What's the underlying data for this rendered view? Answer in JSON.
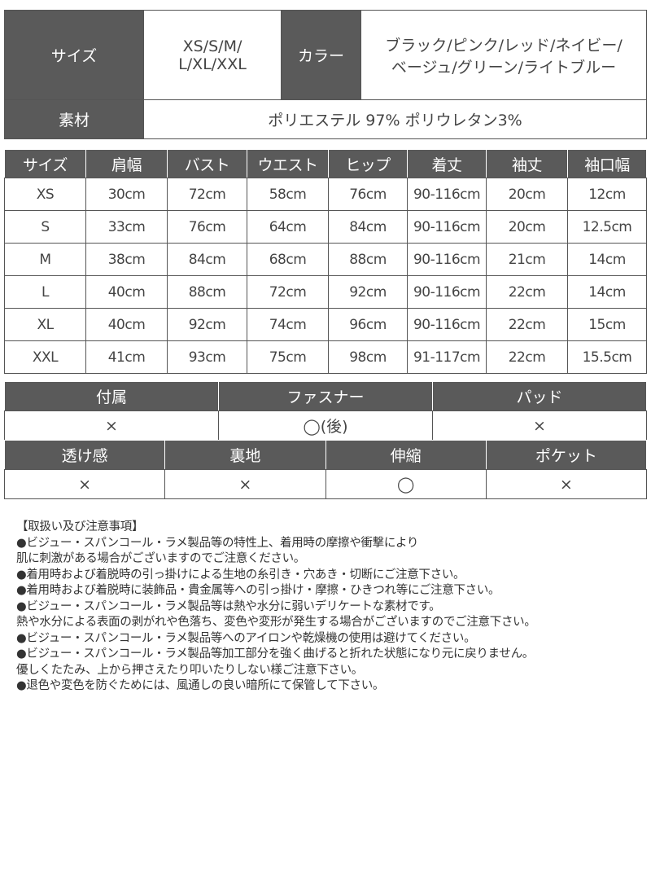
{
  "spec": {
    "size_label": "サイズ",
    "size_value_line1": "XS/S/M/",
    "size_value_line2": "L/XL/XXL",
    "color_label": "カラー",
    "color_value_line1": "ブラック/ピンク/レッド/ネイビー/",
    "color_value_line2": "ベージュ/グリーン/ライトブルー",
    "material_label": "素材",
    "material_value": "ポリエステル 97% ポリウレタン3%"
  },
  "size_table": {
    "headers": [
      "サイズ",
      "肩幅",
      "バスト",
      "ウエスト",
      "ヒップ",
      "着丈",
      "袖丈",
      "袖口幅"
    ],
    "rows": [
      [
        "XS",
        "30cm",
        "72cm",
        "58cm",
        "76cm",
        "90-116cm",
        "20cm",
        "12cm"
      ],
      [
        "S",
        "33cm",
        "76cm",
        "64cm",
        "84cm",
        "90-116cm",
        "20cm",
        "12.5cm"
      ],
      [
        "M",
        "38cm",
        "84cm",
        "68cm",
        "88cm",
        "90-116cm",
        "21cm",
        "14cm"
      ],
      [
        "L",
        "40cm",
        "88cm",
        "72cm",
        "92cm",
        "90-116cm",
        "22cm",
        "14cm"
      ],
      [
        "XL",
        "40cm",
        "92cm",
        "74cm",
        "96cm",
        "90-116cm",
        "22cm",
        "15cm"
      ],
      [
        "XXL",
        "41cm",
        "93cm",
        "75cm",
        "98cm",
        "91-117cm",
        "22cm",
        "15.5cm"
      ]
    ]
  },
  "features1": {
    "headers": [
      "付属",
      "ファスナー",
      "パッド"
    ],
    "values": [
      "×",
      "◯(後)",
      "×"
    ]
  },
  "features2": {
    "headers": [
      "透け感",
      "裏地",
      "伸縮",
      "ポケット"
    ],
    "values": [
      "×",
      "×",
      "◯",
      "×"
    ]
  },
  "notes": {
    "title": "【取扱い及び注意事項】",
    "lines": [
      "●ビジュー・スパンコール・ラメ製品等の特性上、着用時の摩擦や衝撃により",
      "肌に刺激がある場合がございますのでご注意ください。",
      "●着用時および着脱時の引っ掛けによる生地の糸引き・穴あき・切断にご注意下さい。",
      "●着用時および着脱時に装飾品・貴金属等への引っ掛け・摩擦・ひきつれ等にご注意下さい。",
      "●ビジュー・スパンコール・ラメ製品等は熱や水分に弱いデリケートな素材です。",
      "熱や水分による表面の剥がれや色落ち、変色や変形が発生する場合がございますのでご注意下さい。",
      "●ビジュー・スパンコール・ラメ製品等へのアイロンや乾燥機の使用は避けてください。",
      "●ビジュー・スパンコール・ラメ製品等加工部分を強く曲げると折れた状態になり元に戻りません。",
      "優しくたたみ、上から押さえたり叩いたりしない様ご注意下さい。",
      "●退色や変色を防ぐためには、風通しの良い暗所にて保管して下さい。"
    ]
  },
  "colors": {
    "header_bg": "#5a5a5a",
    "header_text": "#ffffff",
    "border": "#555555"
  }
}
